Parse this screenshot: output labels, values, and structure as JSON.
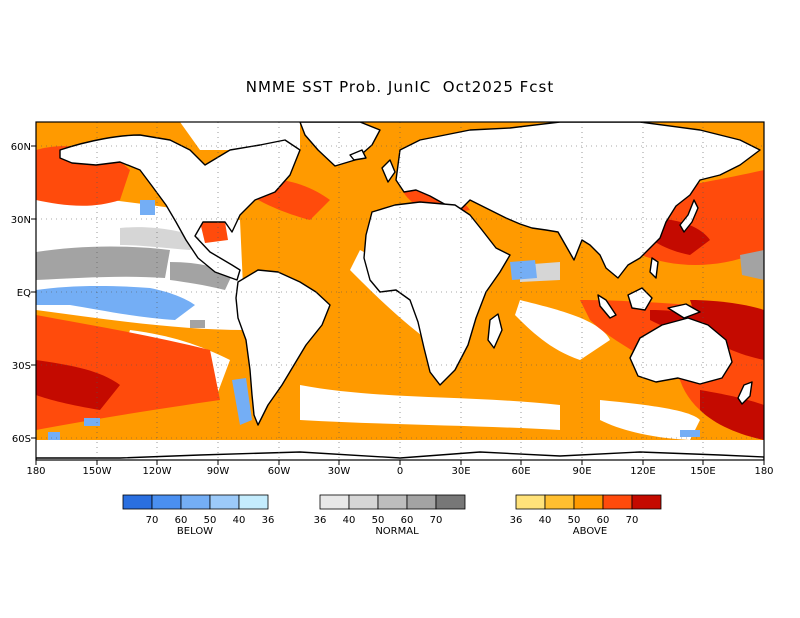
{
  "title": "NMME SST Prob. JunIC  Oct2025 Fcst",
  "lon_labels": [
    "180",
    "150W",
    "120W",
    "90W",
    "60W",
    "30W",
    "0",
    "30E",
    "60E",
    "90E",
    "120E",
    "150E",
    "180"
  ],
  "lat_labels": [
    "60N",
    "30N",
    "EQ",
    "30S",
    "60S"
  ],
  "legends": [
    {
      "name": "BELOW",
      "ticks": [
        "70",
        "60",
        "50",
        "40",
        "36"
      ],
      "colors": [
        "#2a6fe0",
        "#4a8ff0",
        "#74aef5",
        "#9ccaf9",
        "#c4ecfd"
      ]
    },
    {
      "name": "NORMAL",
      "ticks": [
        "36",
        "40",
        "50",
        "60",
        "70"
      ],
      "colors": [
        "#e8e8e8",
        "#d6d6d6",
        "#bdbdbd",
        "#a3a3a3",
        "#777777"
      ]
    },
    {
      "name": "ABOVE",
      "ticks": [
        "36",
        "40",
        "50",
        "60",
        "70"
      ],
      "colors": [
        "#ffe27a",
        "#ffbf30",
        "#ff9a00",
        "#ff4b0c",
        "#c40a00"
      ]
    }
  ],
  "colors": {
    "land": "#ffffff",
    "ocean_above_light": "#ff9a00",
    "ocean_above_strong": "#ff4b0c",
    "ocean_above_extreme": "#c40a00",
    "ocean_below": "#74aef5",
    "ocean_normal": "#a3a3a3"
  }
}
